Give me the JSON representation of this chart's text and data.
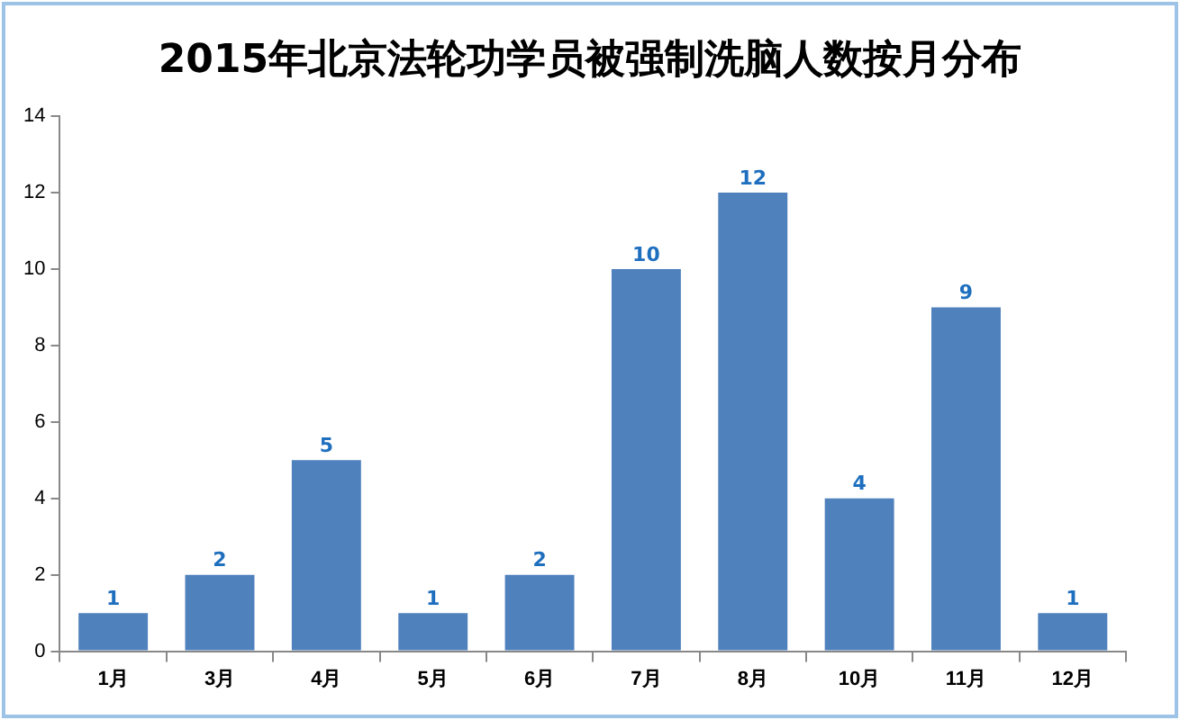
{
  "chart_data": {
    "type": "bar",
    "title": "2015年北京法轮功学员被强制洗脑人数按月分布",
    "categories": [
      "1月",
      "3月",
      "4月",
      "5月",
      "6月",
      "7月",
      "8月",
      "10月",
      "11月",
      "12月"
    ],
    "values": [
      1,
      2,
      5,
      1,
      2,
      10,
      12,
      4,
      9,
      1
    ],
    "color": "#4f81bd",
    "ylim": [
      0,
      14
    ],
    "yticks": [
      0,
      2,
      4,
      6,
      8,
      10,
      12,
      14
    ],
    "grid": false,
    "legend": false,
    "data_labels": true
  }
}
